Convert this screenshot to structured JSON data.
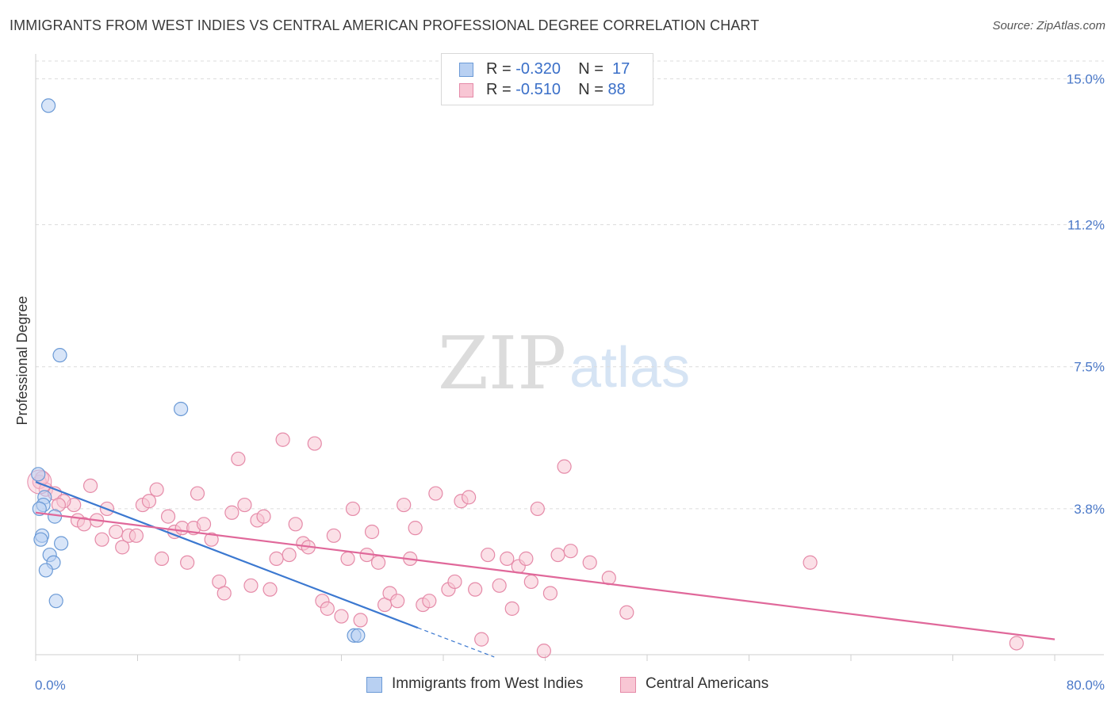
{
  "header": {
    "title": "IMMIGRANTS FROM WEST INDIES VS CENTRAL AMERICAN PROFESSIONAL DEGREE CORRELATION CHART",
    "source": "Source: ZipAtlas.com"
  },
  "legend": {
    "rows": [
      {
        "r_label": "R =",
        "r_value": "-0.320",
        "n_label": "N =",
        "n_value": "17"
      },
      {
        "r_label": "R =",
        "r_value": "-0.510",
        "n_label": "N =",
        "n_value": "88"
      }
    ]
  },
  "watermark": {
    "zip": "ZIP",
    "atlas": "atlas"
  },
  "colors": {
    "blue_fill": "#b8d0f2",
    "blue_stroke": "#6b9ad6",
    "blue_line": "#3b78d0",
    "pink_fill": "#f8c6d4",
    "pink_stroke": "#e58aa8",
    "pink_line": "#e0689a",
    "grid": "#dcdcdc",
    "axis_label": "#4a78c8"
  },
  "chart_data": {
    "type": "scatter",
    "title": "IMMIGRANTS FROM WEST INDIES VS CENTRAL AMERICAN PROFESSIONAL DEGREE CORRELATION CHART",
    "xlabel": "",
    "ylabel": "Professional Degree",
    "xlim": [
      0,
      80
    ],
    "ylim": [
      0,
      15.4
    ],
    "x_tick_labels": [
      "0.0%",
      "80.0%"
    ],
    "y_ticks": [
      3.8,
      7.5,
      11.2,
      15.0
    ],
    "y_tick_labels": [
      "3.8%",
      "7.5%",
      "11.2%",
      "15.0%"
    ],
    "legend_position": "top-center",
    "series": [
      {
        "name": "Immigrants from West Indies",
        "color": "blue",
        "R": -0.32,
        "N": 17,
        "trend": {
          "x0": 0,
          "y0": 4.5,
          "x1": 30,
          "y1": 0.7,
          "dashed_to_x": 36
        },
        "points": [
          [
            1.0,
            14.3
          ],
          [
            1.9,
            7.8
          ],
          [
            11.4,
            6.4
          ],
          [
            0.2,
            4.7
          ],
          [
            0.7,
            4.1
          ],
          [
            0.6,
            3.9
          ],
          [
            0.3,
            3.8
          ],
          [
            1.5,
            3.6
          ],
          [
            0.5,
            3.1
          ],
          [
            0.4,
            3.0
          ],
          [
            2.0,
            2.9
          ],
          [
            1.1,
            2.6
          ],
          [
            1.4,
            2.4
          ],
          [
            0.8,
            2.2
          ],
          [
            1.6,
            1.4
          ],
          [
            25.0,
            0.5
          ],
          [
            25.3,
            0.5
          ]
        ]
      },
      {
        "name": "Central Americans",
        "color": "pink",
        "R": -0.51,
        "N": 88,
        "trend": {
          "x0": 0,
          "y0": 3.7,
          "x1": 80,
          "y1": 0.4
        },
        "points": [
          [
            0.3,
            4.5
          ],
          [
            0.8,
            4.3
          ],
          [
            1.5,
            4.2
          ],
          [
            3.0,
            3.9
          ],
          [
            4.3,
            4.4
          ],
          [
            2.2,
            4.0
          ],
          [
            1.8,
            3.9
          ],
          [
            3.3,
            3.5
          ],
          [
            3.8,
            3.4
          ],
          [
            4.8,
            3.5
          ],
          [
            5.6,
            3.8
          ],
          [
            5.2,
            3.0
          ],
          [
            6.3,
            3.2
          ],
          [
            6.8,
            2.8
          ],
          [
            7.3,
            3.1
          ],
          [
            7.9,
            3.1
          ],
          [
            8.4,
            3.9
          ],
          [
            8.9,
            4.0
          ],
          [
            9.5,
            4.3
          ],
          [
            9.9,
            2.5
          ],
          [
            10.4,
            3.6
          ],
          [
            10.9,
            3.2
          ],
          [
            11.5,
            3.3
          ],
          [
            11.9,
            2.4
          ],
          [
            12.4,
            3.3
          ],
          [
            12.7,
            4.2
          ],
          [
            13.2,
            3.4
          ],
          [
            13.8,
            3.0
          ],
          [
            14.4,
            1.9
          ],
          [
            14.8,
            1.6
          ],
          [
            15.4,
            3.7
          ],
          [
            15.9,
            5.1
          ],
          [
            16.4,
            3.9
          ],
          [
            16.9,
            1.8
          ],
          [
            17.4,
            3.5
          ],
          [
            17.9,
            3.6
          ],
          [
            18.4,
            1.7
          ],
          [
            18.9,
            2.5
          ],
          [
            19.4,
            5.6
          ],
          [
            19.9,
            2.6
          ],
          [
            20.4,
            3.4
          ],
          [
            21.0,
            2.9
          ],
          [
            21.4,
            2.8
          ],
          [
            21.9,
            5.5
          ],
          [
            22.5,
            1.4
          ],
          [
            22.9,
            1.2
          ],
          [
            23.4,
            3.1
          ],
          [
            24.0,
            1.0
          ],
          [
            24.5,
            2.5
          ],
          [
            24.9,
            3.8
          ],
          [
            25.5,
            0.9
          ],
          [
            26.0,
            2.6
          ],
          [
            26.4,
            3.2
          ],
          [
            26.9,
            2.4
          ],
          [
            27.4,
            1.3
          ],
          [
            27.8,
            1.6
          ],
          [
            28.4,
            1.4
          ],
          [
            28.9,
            3.9
          ],
          [
            29.4,
            2.5
          ],
          [
            29.8,
            3.3
          ],
          [
            30.4,
            1.3
          ],
          [
            30.9,
            1.4
          ],
          [
            31.4,
            4.2
          ],
          [
            32.4,
            1.7
          ],
          [
            32.9,
            1.9
          ],
          [
            33.4,
            4.0
          ],
          [
            34.0,
            4.1
          ],
          [
            34.5,
            1.7
          ],
          [
            35.0,
            0.4
          ],
          [
            35.5,
            2.6
          ],
          [
            36.4,
            1.8
          ],
          [
            37.0,
            2.5
          ],
          [
            37.4,
            1.2
          ],
          [
            37.9,
            2.3
          ],
          [
            38.5,
            2.5
          ],
          [
            38.9,
            1.9
          ],
          [
            39.4,
            3.8
          ],
          [
            39.9,
            0.1
          ],
          [
            40.4,
            1.6
          ],
          [
            41.0,
            2.6
          ],
          [
            41.5,
            4.9
          ],
          [
            42.0,
            2.7
          ],
          [
            43.5,
            2.4
          ],
          [
            45.0,
            2.0
          ],
          [
            46.4,
            1.1
          ],
          [
            60.8,
            2.4
          ],
          [
            77.0,
            0.3
          ],
          [
            0.5,
            4.6
          ]
        ]
      }
    ]
  },
  "bottom_legend": {
    "items": [
      {
        "label": "Immigrants from West Indies"
      },
      {
        "label": "Central Americans"
      }
    ]
  }
}
